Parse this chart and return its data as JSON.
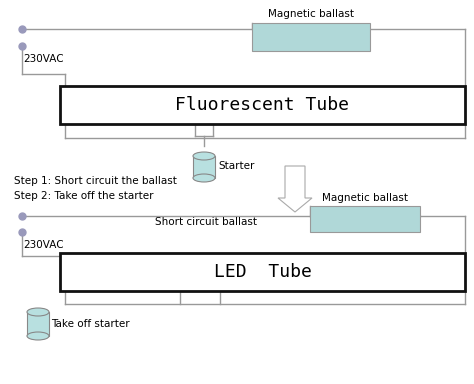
{
  "bg_color": "#ffffff",
  "line_color": "#999999",
  "ballast_fill": "#b0d8d8",
  "ballast_edge": "#999999",
  "tube_fill": "#ffffff",
  "tube_edge": "#111111",
  "starter_fill": "#b8e0e0",
  "starter_edge": "#888888",
  "arrow_fill": "#ffffff",
  "arrow_edge": "#aaaaaa",
  "dot_color": "#9999bb",
  "title_fluorescent": "Fluorescent Tube",
  "title_led": "LED  Tube",
  "label_mag_ballast_top": "Magnetic ballast",
  "label_mag_ballast_bottom": "Magnetic ballast",
  "label_230vac_top": "230VAC",
  "label_230vac_bottom": "230VAC",
  "label_starter_top": "Starter",
  "label_starter_bottom": "Take off starter",
  "label_short_circuit": "Short circuit ballast",
  "label_step1": "Step 1: Short circuit the ballast",
  "label_step2": "Step 2: Take off the starter",
  "font_size_tube": 13,
  "font_size_label": 7.5,
  "font_size_step": 7.5,
  "font_family": "monospace"
}
